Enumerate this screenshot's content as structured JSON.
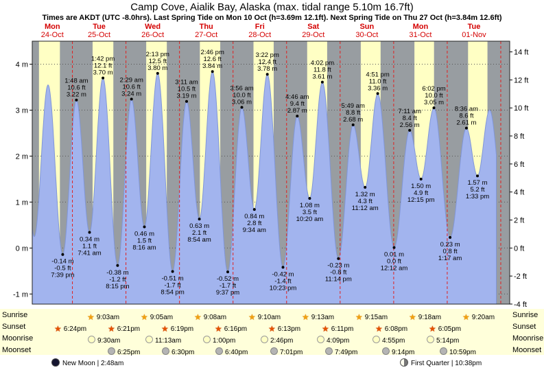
{
  "title": "Camp Cove, Aialik Bay, Alaska (max. tidal range 5.10m 16.7ft)",
  "subtitle": "Times are AKDT (UTC -8.0hrs). Last Spring Tide on Mon 10 Oct (h=3.69m 12.1ft). Next Spring Tide on Thu 27 Oct (h=3.84m 12.6ft)",
  "side_labels": {
    "sunrise": "Sunrise",
    "sunset": "Sunset",
    "moonrise": "Moonrise",
    "moonset": "Moonset"
  },
  "chart_data": {
    "type": "area",
    "title": "Camp Cove, Aialik Bay, Alaska (max. tidal range 5.10m 16.7ft)",
    "y_axis_left": {
      "unit": "m",
      "ticks": [
        4,
        3,
        2,
        1,
        0,
        -1
      ]
    },
    "y_axis_right": {
      "unit": "ft",
      "ticks": [
        14,
        12,
        10,
        8,
        6,
        4,
        2,
        0,
        -2,
        -4
      ]
    },
    "y_range_m": [
      -1.22,
      4.5
    ],
    "days": [
      {
        "name": "Mon",
        "date": "24-Oct"
      },
      {
        "name": "Tue",
        "date": "25-Oct"
      },
      {
        "name": "Wed",
        "date": "26-Oct"
      },
      {
        "name": "Thu",
        "date": "27-Oct"
      },
      {
        "name": "Fri",
        "date": "28-Oct"
      },
      {
        "name": "Sat",
        "date": "29-Oct"
      },
      {
        "name": "Sun",
        "date": "30-Oct"
      },
      {
        "name": "Mon",
        "date": "31-Oct"
      },
      {
        "name": "Tue",
        "date": "01-Nov"
      }
    ],
    "extremes": [
      {
        "day": 0,
        "type": "low",
        "time": "7:39 pm",
        "m_label": "-0.14 m",
        "ft_label": "-0.5 ft",
        "h": -0.14
      },
      {
        "day": 1,
        "type": "high",
        "time": "1:48 am",
        "m_label": "3.22 m",
        "ft_label": "10.6 ft",
        "h": 3.22
      },
      {
        "day": 1,
        "type": "low",
        "time": "7:41 am",
        "m_label": "0.34 m",
        "ft_label": "1.1 ft",
        "h": 0.34
      },
      {
        "day": 1,
        "type": "high",
        "time": "1:42 pm",
        "m_label": "3.70 m",
        "ft_label": "12.1 ft",
        "h": 3.7
      },
      {
        "day": 1,
        "type": "low",
        "time": "8:15 pm",
        "m_label": "-0.38 m",
        "ft_label": "-1.2 ft",
        "h": -0.38
      },
      {
        "day": 2,
        "type": "high",
        "time": "2:29 am",
        "m_label": "3.24 m",
        "ft_label": "10.6 ft",
        "h": 3.24
      },
      {
        "day": 2,
        "type": "low",
        "time": "8:16 am",
        "m_label": "0.46 m",
        "ft_label": "1.5 ft",
        "h": 0.46
      },
      {
        "day": 2,
        "type": "high",
        "time": "2:13 pm",
        "m_label": "3.80 m",
        "ft_label": "12.5 ft",
        "h": 3.8
      },
      {
        "day": 2,
        "type": "low",
        "time": "8:54 pm",
        "m_label": "-0.51 m",
        "ft_label": "-1.7 ft",
        "h": -0.51
      },
      {
        "day": 3,
        "type": "high",
        "time": "3:11 am",
        "m_label": "3.19 m",
        "ft_label": "10.5 ft",
        "h": 3.19
      },
      {
        "day": 3,
        "type": "low",
        "time": "8:54 am",
        "m_label": "0.63 m",
        "ft_label": "2.1 ft",
        "h": 0.63
      },
      {
        "day": 3,
        "type": "high",
        "time": "2:46 pm",
        "m_label": "3.84 m",
        "ft_label": "12.6 ft",
        "h": 3.84
      },
      {
        "day": 3,
        "type": "low",
        "time": "9:37 pm",
        "m_label": "-0.52 m",
        "ft_label": "-1.7 ft",
        "h": -0.52
      },
      {
        "day": 4,
        "type": "high",
        "time": "3:56 am",
        "m_label": "3.06 m",
        "ft_label": "10.0 ft",
        "h": 3.06
      },
      {
        "day": 4,
        "type": "low",
        "time": "9:34 am",
        "m_label": "0.84 m",
        "ft_label": "2.8 ft",
        "h": 0.84
      },
      {
        "day": 4,
        "type": "high",
        "time": "3:22 pm",
        "m_label": "3.78 m",
        "ft_label": "12.4 ft",
        "h": 3.78
      },
      {
        "day": 4,
        "type": "low",
        "time": "10:23 pm",
        "m_label": "-0.42 m",
        "ft_label": "-1.4 ft",
        "h": -0.42
      },
      {
        "day": 5,
        "type": "high",
        "time": "4:46 am",
        "m_label": "2.87 m",
        "ft_label": "9.4 ft",
        "h": 2.87
      },
      {
        "day": 5,
        "type": "low",
        "time": "10:20 am",
        "m_label": "1.08 m",
        "ft_label": "3.5 ft",
        "h": 1.08
      },
      {
        "day": 5,
        "type": "high",
        "time": "4:02 pm",
        "m_label": "3.61 m",
        "ft_label": "11.8 ft",
        "h": 3.61
      },
      {
        "day": 5,
        "type": "low",
        "time": "11:14 pm",
        "m_label": "-0.23 m",
        "ft_label": "-0.8 ft",
        "h": -0.23
      },
      {
        "day": 6,
        "type": "high",
        "time": "5:49 am",
        "m_label": "2.68 m",
        "ft_label": "8.8 ft",
        "h": 2.68
      },
      {
        "day": 6,
        "type": "low",
        "time": "11:12 am",
        "m_label": "1.32 m",
        "ft_label": "4.3 ft",
        "h": 1.32
      },
      {
        "day": 6,
        "type": "high",
        "time": "4:51 pm",
        "m_label": "3.36 m",
        "ft_label": "11.0 ft",
        "h": 3.36
      },
      {
        "day": 7,
        "type": "low",
        "time": "12:12 am",
        "m_label": "0.01 m",
        "ft_label": "0.0 ft",
        "h": 0.01
      },
      {
        "day": 7,
        "type": "high",
        "time": "7:11 am",
        "m_label": "2.56 m",
        "ft_label": "8.4 ft",
        "h": 2.56
      },
      {
        "day": 7,
        "type": "low",
        "time": "12:15 pm",
        "m_label": "1.50 m",
        "ft_label": "4.9 ft",
        "h": 1.5
      },
      {
        "day": 7,
        "type": "high",
        "time": "6:02 pm",
        "m_label": "3.05 m",
        "ft_label": "10.0 ft",
        "h": 3.05
      },
      {
        "day": 8,
        "type": "low",
        "time": "1:17 am",
        "m_label": "0.23 m",
        "ft_label": "0.8 ft",
        "h": 0.23
      },
      {
        "day": 8,
        "type": "high",
        "time": "8:36 am",
        "m_label": "2.61 m",
        "ft_label": "8.6 ft",
        "h": 2.61
      },
      {
        "day": 8,
        "type": "low",
        "time": "1:33 pm",
        "m_label": "1.57 m",
        "ft_label": "5.2 ft",
        "h": 1.57
      }
    ],
    "edge_anchors": [
      {
        "day": 0,
        "type": "high",
        "time": "1:05 am",
        "h": 3.1
      },
      {
        "day": 0,
        "type": "low",
        "time": "6:55 am",
        "h": 0.25
      },
      {
        "day": 0,
        "type": "high",
        "time": "1:05 pm",
        "h": 3.55
      },
      {
        "day": 8,
        "type": "high",
        "time": "7:00 pm",
        "h": 3.0
      },
      {
        "day": 9,
        "type": "low",
        "time": "2:00 am",
        "h": 0.5
      }
    ],
    "sun_moon": {
      "sunrise": [
        {
          "day": 1,
          "time": "9:03am"
        },
        {
          "day": 2,
          "time": "9:05am"
        },
        {
          "day": 3,
          "time": "9:08am"
        },
        {
          "day": 4,
          "time": "9:10am"
        },
        {
          "day": 5,
          "time": "9:13am"
        },
        {
          "day": 6,
          "time": "9:15am"
        },
        {
          "day": 7,
          "time": "9:18am"
        },
        {
          "day": 8,
          "time": "9:20am"
        }
      ],
      "sunset": [
        {
          "day": 0,
          "time": "6:24pm"
        },
        {
          "day": 1,
          "time": "6:21pm"
        },
        {
          "day": 2,
          "time": "6:19pm"
        },
        {
          "day": 3,
          "time": "6:16pm"
        },
        {
          "day": 4,
          "time": "6:13pm"
        },
        {
          "day": 5,
          "time": "6:11pm"
        },
        {
          "day": 6,
          "time": "6:08pm"
        },
        {
          "day": 7,
          "time": "6:05pm"
        }
      ],
      "moonrise": [
        {
          "day": 1,
          "time": "9:30am"
        },
        {
          "day": 2,
          "time": "11:13am"
        },
        {
          "day": 3,
          "time": "1:00pm"
        },
        {
          "day": 4,
          "time": "2:46pm"
        },
        {
          "day": 5,
          "time": "4:09pm"
        },
        {
          "day": 6,
          "time": "4:55pm"
        },
        {
          "day": 7,
          "time": "5:14pm"
        }
      ],
      "moonset": [
        {
          "day": 1,
          "time": "6:25pm"
        },
        {
          "day": 2,
          "time": "6:30pm"
        },
        {
          "day": 3,
          "time": "6:40pm"
        },
        {
          "day": 4,
          "time": "7:01pm"
        },
        {
          "day": 5,
          "time": "7:49pm"
        },
        {
          "day": 6,
          "time": "9:14pm"
        },
        {
          "day": 7,
          "time": "10:59pm"
        }
      ]
    },
    "phases": [
      {
        "name": "new-moon",
        "label": "New Moon | 2:48am"
      },
      {
        "name": "first-quarter",
        "label": "First Quarter | 10:38pm"
      }
    ],
    "colors": {
      "day_band": "#ffffc4",
      "night_band": "#989da1",
      "tide_fill": "#a2b4ee",
      "tide_edge": "#8096d8",
      "day_grid": "#e02020",
      "date_text": "#d40000"
    }
  }
}
